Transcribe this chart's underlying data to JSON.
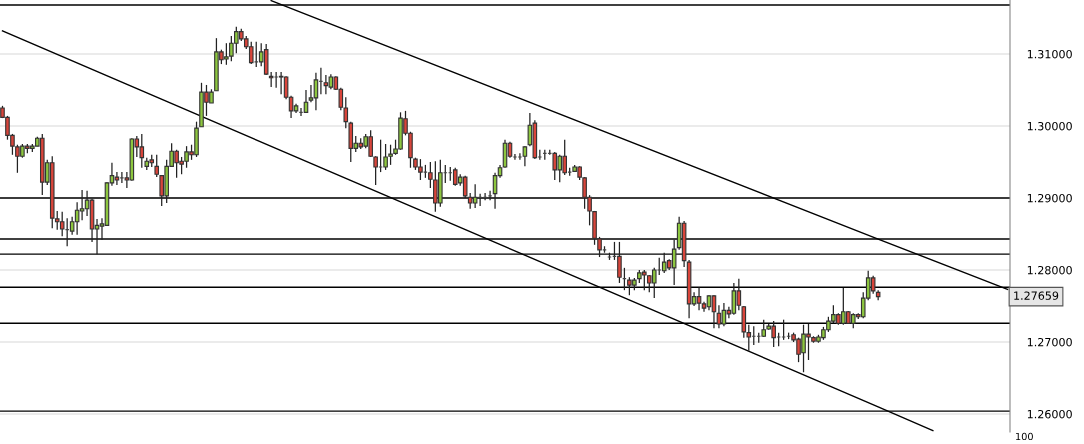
{
  "chart_data": {
    "type": "candlestick",
    "categories": [
      null,
      null,
      null,
      null,
      null,
      null,
      null,
      null,
      null,
      null,
      null,
      null,
      null,
      null,
      null,
      null,
      null,
      null,
      null,
      null,
      null,
      null,
      null,
      null,
      null,
      null,
      null,
      null,
      null,
      null,
      null,
      null,
      null,
      null,
      null,
      null,
      null,
      null,
      null,
      null,
      null,
      null,
      null,
      null,
      null,
      null,
      null,
      null,
      null,
      null,
      null,
      null,
      null,
      null,
      null,
      null,
      null,
      null,
      null,
      null,
      null,
      null,
      null,
      null,
      null,
      null,
      null,
      null,
      null,
      null,
      null,
      null,
      null,
      null,
      null,
      null,
      null,
      null,
      null,
      null,
      null,
      null,
      null,
      null,
      null,
      null,
      null,
      null,
      null,
      null,
      null,
      null,
      null,
      null,
      null,
      null,
      null,
      null,
      null,
      null,
      null,
      null,
      null,
      null,
      null,
      null,
      null,
      null,
      null,
      null,
      null,
      null,
      null,
      null,
      null,
      null,
      null,
      null,
      null,
      null,
      null,
      null,
      null,
      null,
      null,
      null,
      null,
      null,
      null,
      null,
      null,
      null,
      null,
      null,
      null,
      null,
      null,
      null,
      null,
      null,
      null,
      null,
      null,
      null,
      null,
      null,
      null,
      null,
      null,
      null,
      null,
      null,
      null,
      null,
      null,
      null,
      null,
      null,
      null,
      null,
      null,
      null,
      null,
      null,
      null,
      null,
      null,
      null,
      null,
      null,
      null,
      null,
      null,
      null,
      null,
      null,
      null,
      null,
      null,
      null,
      null,
      null,
      null,
      null,
      null,
      null,
      null,
      null,
      null,
      null,
      null,
      null,
      null,
      null,
      null,
      null,
      null,
      null,
      null,
      null,
      null,
      null,
      null
    ],
    "ohlc": [
      [
        1.3025,
        1.3028,
        1.3011,
        1.3012
      ],
      [
        1.3012,
        1.3014,
        1.2981,
        1.2987
      ],
      [
        1.2987,
        1.2989,
        1.296,
        1.2972
      ],
      [
        1.2971,
        1.2974,
        1.2935,
        1.2958
      ],
      [
        1.2958,
        1.2975,
        1.2956,
        1.2972
      ],
      [
        1.2972,
        1.2975,
        1.2962,
        1.2969
      ],
      [
        1.2969,
        1.2975,
        1.2964,
        1.2972
      ],
      [
        1.2972,
        1.2985,
        1.2972,
        1.2983
      ],
      [
        1.2983,
        1.2989,
        1.2904,
        1.2922
      ],
      [
        1.2922,
        1.2953,
        1.2918,
        1.2949
      ],
      [
        1.2949,
        1.2958,
        1.2858,
        1.2872
      ],
      [
        1.2871,
        1.2882,
        1.2856,
        1.2867
      ],
      [
        1.2867,
        1.2881,
        1.2847,
        1.2857
      ],
      [
        1.2856,
        1.2872,
        1.2833,
        1.2856
      ],
      [
        1.2854,
        1.2874,
        1.2849,
        1.2867
      ],
      [
        1.2867,
        1.2894,
        1.2849,
        1.2883
      ],
      [
        1.2882,
        1.2911,
        1.2869,
        1.2885
      ],
      [
        1.2885,
        1.291,
        1.2875,
        1.2897
      ],
      [
        1.2897,
        1.2899,
        1.2839,
        1.2857
      ],
      [
        1.2857,
        1.2871,
        1.2822,
        1.2862
      ],
      [
        1.2861,
        1.2872,
        1.2842,
        1.2864
      ],
      [
        1.2862,
        1.2922,
        1.2862,
        1.2921
      ],
      [
        1.2921,
        1.2949,
        1.2917,
        1.2931
      ],
      [
        1.2929,
        1.2936,
        1.2918,
        1.2925
      ],
      [
        1.2928,
        1.2936,
        1.2921,
        1.2928
      ],
      [
        1.2928,
        1.2936,
        1.2914,
        1.2925
      ],
      [
        1.2925,
        1.2983,
        1.2924,
        1.2982
      ],
      [
        1.2982,
        1.2986,
        1.2957,
        1.2971
      ],
      [
        1.2971,
        1.2989,
        1.2942,
        1.2956
      ],
      [
        1.2944,
        1.2956,
        1.2939,
        1.2951
      ],
      [
        1.2953,
        1.296,
        1.2943,
        1.2949
      ],
      [
        1.2944,
        1.296,
        1.2929,
        1.2933
      ],
      [
        1.2931,
        1.2932,
        1.2889,
        1.2903
      ],
      [
        1.2903,
        1.2953,
        1.2893,
        1.2944
      ],
      [
        1.2944,
        1.2976,
        1.2944,
        1.2965
      ],
      [
        1.2965,
        1.2967,
        1.2928,
        1.2949
      ],
      [
        1.2951,
        1.2957,
        1.2933,
        1.2947
      ],
      [
        1.2951,
        1.2972,
        1.2942,
        1.2964
      ],
      [
        1.2964,
        1.2974,
        1.2953,
        1.296
      ],
      [
        1.296,
        1.3006,
        1.2957,
        1.2997
      ],
      [
        1.2999,
        1.306,
        1.2999,
        1.3047
      ],
      [
        1.3047,
        1.3057,
        1.3014,
        1.3033
      ],
      [
        1.3032,
        1.3051,
        1.3032,
        1.3047
      ],
      [
        1.3049,
        1.3122,
        1.3049,
        1.3103
      ],
      [
        1.3103,
        1.3106,
        1.3086,
        1.3092
      ],
      [
        1.3093,
        1.3115,
        1.3085,
        1.3096
      ],
      [
        1.3097,
        1.3125,
        1.309,
        1.3115
      ],
      [
        1.3115,
        1.3138,
        1.3101,
        1.3131
      ],
      [
        1.3131,
        1.3135,
        1.3118,
        1.3121
      ],
      [
        1.3121,
        1.3125,
        1.3107,
        1.311
      ],
      [
        1.311,
        1.3117,
        1.3086,
        1.3088
      ],
      [
        1.3089,
        1.3117,
        1.3082,
        1.3089
      ],
      [
        1.3089,
        1.3115,
        1.3083,
        1.3103
      ],
      [
        1.3106,
        1.3114,
        1.3071,
        1.3072
      ],
      [
        1.3069,
        1.3075,
        1.3054,
        1.3067
      ],
      [
        1.3068,
        1.3075,
        1.3053,
        1.3068
      ],
      [
        1.3069,
        1.3075,
        1.3044,
        1.3068
      ],
      [
        1.3068,
        1.3069,
        1.3037,
        1.304
      ],
      [
        1.304,
        1.3042,
        1.3011,
        1.3021
      ],
      [
        1.3021,
        1.3031,
        1.3018,
        1.3028
      ],
      [
        1.3019,
        1.3025,
        1.3014,
        1.3019
      ],
      [
        1.3019,
        1.305,
        1.3018,
        1.3033
      ],
      [
        1.3036,
        1.3057,
        1.3033,
        1.3039
      ],
      [
        1.3039,
        1.3074,
        1.3022,
        1.3064
      ],
      [
        1.3062,
        1.3081,
        1.3044,
        1.3062
      ],
      [
        1.306,
        1.3071,
        1.3044,
        1.3056
      ],
      [
        1.3054,
        1.3072,
        1.3051,
        1.3068
      ],
      [
        1.3068,
        1.3069,
        1.305,
        1.3051
      ],
      [
        1.3051,
        1.3053,
        1.3022,
        1.3026
      ],
      [
        1.3025,
        1.304,
        1.2997,
        1.3006
      ],
      [
        1.3004,
        1.3006,
        1.295,
        1.2969
      ],
      [
        1.2969,
        1.2986,
        1.2964,
        1.2976
      ],
      [
        1.2976,
        1.2983,
        1.2968,
        1.2971
      ],
      [
        1.2972,
        1.2989,
        1.2969,
        1.2985
      ],
      [
        1.2985,
        1.2994,
        1.2957,
        1.2958
      ],
      [
        1.2957,
        1.2958,
        1.2918,
        1.2943
      ],
      [
        1.2943,
        1.2981,
        1.2936,
        1.2943
      ],
      [
        1.2943,
        1.2975,
        1.2939,
        1.2957
      ],
      [
        1.2958,
        1.2974,
        1.2946,
        1.2961
      ],
      [
        1.2962,
        1.2981,
        1.296,
        1.2968
      ],
      [
        1.2968,
        1.3019,
        1.2967,
        1.3011
      ],
      [
        1.301,
        1.3021,
        1.2987,
        1.299
      ],
      [
        1.299,
        1.2992,
        1.2942,
        1.2956
      ],
      [
        1.2954,
        1.2956,
        1.2939,
        1.2943
      ],
      [
        1.2943,
        1.2954,
        1.2925,
        1.2936
      ],
      [
        1.2936,
        1.2946,
        1.2928,
        1.2936
      ],
      [
        1.2935,
        1.295,
        1.2914,
        1.2926
      ],
      [
        1.2925,
        1.2951,
        1.2881,
        1.2893
      ],
      [
        1.2893,
        1.2953,
        1.2888,
        1.2935
      ],
      [
        1.2935,
        1.2946,
        1.2921,
        1.2935
      ],
      [
        1.2935,
        1.2943,
        1.2924,
        1.2935
      ],
      [
        1.2939,
        1.2942,
        1.2917,
        1.2919
      ],
      [
        1.2921,
        1.2933,
        1.2917,
        1.2929
      ],
      [
        1.2929,
        1.2931,
        1.29,
        1.2903
      ],
      [
        1.2901,
        1.2907,
        1.2885,
        1.2893
      ],
      [
        1.2893,
        1.2919,
        1.2886,
        1.2901
      ],
      [
        1.2901,
        1.2906,
        1.2889,
        1.2901
      ],
      [
        1.2901,
        1.2907,
        1.2897,
        1.2901
      ],
      [
        1.2903,
        1.291,
        1.2897,
        1.2903
      ],
      [
        1.2906,
        1.2935,
        1.2885,
        1.2931
      ],
      [
        1.2931,
        1.2946,
        1.2928,
        1.2942
      ],
      [
        1.2943,
        1.2981,
        1.2942,
        1.2976
      ],
      [
        1.2976,
        1.2978,
        1.2956,
        1.2958
      ],
      [
        1.2957,
        1.2961,
        1.2953,
        1.2957
      ],
      [
        1.2957,
        1.2962,
        1.2953,
        1.2957
      ],
      [
        1.2958,
        1.2972,
        1.2944,
        1.2971
      ],
      [
        1.2974,
        1.3018,
        1.2972,
        1.3001
      ],
      [
        1.3004,
        1.3008,
        1.2954,
        1.2956
      ],
      [
        1.2957,
        1.2967,
        1.2953,
        1.2957
      ],
      [
        1.2962,
        1.2967,
        1.2953,
        1.2962
      ],
      [
        1.2962,
        1.2967,
        1.296,
        1.2962
      ],
      [
        1.2962,
        1.2964,
        1.2925,
        1.2939
      ],
      [
        1.2939,
        1.296,
        1.2922,
        1.2958
      ],
      [
        1.2958,
        1.2981,
        1.2932,
        1.2935
      ],
      [
        1.2936,
        1.2942,
        1.2931,
        1.2936
      ],
      [
        1.2937,
        1.2946,
        1.2936,
        1.2943
      ],
      [
        1.2943,
        1.2944,
        1.2925,
        1.2929
      ],
      [
        1.2928,
        1.2929,
        1.2885,
        1.2901
      ],
      [
        1.2901,
        1.2904,
        1.2862,
        1.2882
      ],
      [
        1.2881,
        1.2882,
        1.2835,
        1.2844
      ],
      [
        1.2843,
        1.2846,
        1.2818,
        1.2828
      ],
      [
        1.2828,
        1.2833,
        1.2824,
        1.2828
      ],
      [
        1.2818,
        1.2824,
        1.2814,
        1.2818
      ],
      [
        1.2819,
        1.2839,
        1.2814,
        1.2819
      ],
      [
        1.2819,
        1.2839,
        1.2782,
        1.279
      ],
      [
        1.2788,
        1.2803,
        1.2772,
        1.2788
      ],
      [
        1.2786,
        1.279,
        1.2765,
        1.2779
      ],
      [
        1.2779,
        1.2789,
        1.2772,
        1.2786
      ],
      [
        1.2788,
        1.28,
        1.2782,
        1.2796
      ],
      [
        1.2797,
        1.28,
        1.2772,
        1.2793
      ],
      [
        1.2792,
        1.2793,
        1.2769,
        1.2782
      ],
      [
        1.2782,
        1.2803,
        1.2761,
        1.28
      ],
      [
        1.28,
        1.2817,
        1.2793,
        1.28
      ],
      [
        1.2799,
        1.2824,
        1.2796,
        1.2811
      ],
      [
        1.2813,
        1.2815,
        1.28,
        1.2803
      ],
      [
        1.2803,
        1.2842,
        1.2779,
        1.2829
      ],
      [
        1.2831,
        1.2874,
        1.2828,
        1.2865
      ],
      [
        1.2865,
        1.2868,
        1.2804,
        1.2813
      ],
      [
        1.2811,
        1.2814,
        1.2733,
        1.2753
      ],
      [
        1.2753,
        1.2769,
        1.275,
        1.2763
      ],
      [
        1.2763,
        1.2776,
        1.2744,
        1.2754
      ],
      [
        1.2753,
        1.2756,
        1.2742,
        1.2747
      ],
      [
        1.2749,
        1.2765,
        1.2744,
        1.2764
      ],
      [
        1.2764,
        1.2765,
        1.2719,
        1.2742
      ],
      [
        1.274,
        1.2751,
        1.2719,
        1.2725
      ],
      [
        1.2725,
        1.2754,
        1.2722,
        1.2744
      ],
      [
        1.2744,
        1.2749,
        1.2733,
        1.2739
      ],
      [
        1.274,
        1.2782,
        1.2738,
        1.2771
      ],
      [
        1.2771,
        1.2788,
        1.2744,
        1.2751
      ],
      [
        1.2749,
        1.275,
        1.2706,
        1.2714
      ],
      [
        1.2713,
        1.2724,
        1.2688,
        1.2707
      ],
      [
        1.2708,
        1.2722,
        1.2696,
        1.2708
      ],
      [
        1.2708,
        1.2713,
        1.2699,
        1.2708
      ],
      [
        1.2708,
        1.2731,
        1.2707,
        1.2717
      ],
      [
        1.2718,
        1.2725,
        1.2717,
        1.2722
      ],
      [
        1.2722,
        1.2729,
        1.2693,
        1.2706
      ],
      [
        1.2707,
        1.2713,
        1.2694,
        1.2707
      ],
      [
        1.2707,
        1.2731,
        1.2703,
        1.2707
      ],
      [
        1.2708,
        1.2713,
        1.2704,
        1.2708
      ],
      [
        1.271,
        1.2713,
        1.27,
        1.2703
      ],
      [
        1.2704,
        1.2706,
        1.2672,
        1.2683
      ],
      [
        1.2685,
        1.2724,
        1.2658,
        1.2711
      ],
      [
        1.2711,
        1.2725,
        1.2675,
        1.2707
      ],
      [
        1.2706,
        1.2708,
        1.2699,
        1.2701
      ],
      [
        1.2701,
        1.271,
        1.2699,
        1.2707
      ],
      [
        1.2706,
        1.2721,
        1.2703,
        1.2717
      ],
      [
        1.2717,
        1.2735,
        1.2714,
        1.2729
      ],
      [
        1.2729,
        1.2751,
        1.2726,
        1.2738
      ],
      [
        1.2738,
        1.274,
        1.2724,
        1.2726
      ],
      [
        1.2726,
        1.2775,
        1.2724,
        1.2742
      ],
      [
        1.2742,
        1.2743,
        1.2725,
        1.2726
      ],
      [
        1.2726,
        1.274,
        1.2719,
        1.2738
      ],
      [
        1.2738,
        1.274,
        1.2732,
        1.2735
      ],
      [
        1.2735,
        1.2769,
        1.2733,
        1.2761
      ],
      [
        1.2761,
        1.2799,
        1.2758,
        1.2789
      ],
      [
        1.2789,
        1.2792,
        1.2767,
        1.2771
      ],
      [
        1.2769,
        1.2772,
        1.2758,
        1.2763
      ],
      null,
      null,
      null,
      null,
      null,
      null,
      null,
      null,
      null,
      null,
      null,
      null,
      null,
      null,
      null,
      null,
      null,
      null,
      null,
      null,
      null,
      null,
      null,
      null,
      null,
      null
    ],
    "colors": [
      "#d9453b",
      "#d9453b",
      "#d9453b",
      "#d9453b",
      "#8dc63f",
      "#d9453b",
      "#8dc63f",
      "#8dc63f",
      "#d9453b",
      "#8dc63f",
      "#d9453b",
      "#d9453b",
      "#d9453b",
      "#444444",
      "#8dc63f",
      "#8dc63f",
      "#8dc63f",
      "#8dc63f",
      "#d9453b",
      "#8dc63f",
      "#8dc63f",
      "#8dc63f",
      "#8dc63f",
      "#d9453b",
      "#444444",
      "#d9453b",
      "#8dc63f",
      "#d9453b",
      "#d9453b",
      "#8dc63f",
      "#d9453b",
      "#d9453b",
      "#d9453b",
      "#8dc63f",
      "#8dc63f",
      "#d9453b",
      "#d9453b",
      "#8dc63f",
      "#d9453b",
      "#8dc63f",
      "#8dc63f",
      "#d9453b",
      "#8dc63f",
      "#8dc63f",
      "#d9453b",
      "#8dc63f",
      "#8dc63f",
      "#8dc63f",
      "#d9453b",
      "#d9453b",
      "#d9453b",
      "#444444",
      "#8dc63f",
      "#d9453b",
      "#d9453b",
      "#444444",
      "#d9453b",
      "#d9453b",
      "#d9453b",
      "#8dc63f",
      "#444444",
      "#8dc63f",
      "#8dc63f",
      "#8dc63f",
      "#444444",
      "#d9453b",
      "#8dc63f",
      "#d9453b",
      "#d9453b",
      "#d9453b",
      "#d9453b",
      "#8dc63f",
      "#d9453b",
      "#8dc63f",
      "#d9453b",
      "#d9453b",
      "#444444",
      "#8dc63f",
      "#8dc63f",
      "#8dc63f",
      "#8dc63f",
      "#d9453b",
      "#d9453b",
      "#d9453b",
      "#d9453b",
      "#444444",
      "#d9453b",
      "#d9453b",
      "#8dc63f",
      "#444444",
      "#444444",
      "#d9453b",
      "#8dc63f",
      "#d9453b",
      "#d9453b",
      "#8dc63f",
      "#444444",
      "#444444",
      "#444444",
      "#8dc63f",
      "#8dc63f",
      "#8dc63f",
      "#d9453b",
      "#444444",
      "#444444",
      "#8dc63f",
      "#8dc63f",
      "#d9453b",
      "#444444",
      "#444444",
      "#444444",
      "#d9453b",
      "#8dc63f",
      "#d9453b",
      "#444444",
      "#8dc63f",
      "#d9453b",
      "#d9453b",
      "#d9453b",
      "#d9453b",
      "#d9453b",
      "#444444",
      "#444444",
      "#444444",
      "#d9453b",
      "#444444",
      "#d9453b",
      "#8dc63f",
      "#8dc63f",
      "#d9453b",
      "#d9453b",
      "#8dc63f",
      "#444444",
      "#8dc63f",
      "#d9453b",
      "#8dc63f",
      "#8dc63f",
      "#d9453b",
      "#d9453b",
      "#8dc63f",
      "#d9453b",
      "#d9453b",
      "#8dc63f",
      "#d9453b",
      "#d9453b",
      "#8dc63f",
      "#d9453b",
      "#8dc63f",
      "#d9453b",
      "#d9453b",
      "#d9453b",
      "#444444",
      "#444444",
      "#8dc63f",
      "#8dc63f",
      "#d9453b",
      "#444444",
      "#444444",
      "#444444",
      "#d9453b",
      "#d9453b",
      "#8dc63f",
      "#d9453b",
      "#d9453b",
      "#8dc63f",
      "#8dc63f",
      "#8dc63f",
      "#8dc63f",
      "#d9453b",
      "#8dc63f",
      "#d9453b",
      "#8dc63f",
      "#d9453b",
      "#8dc63f",
      "#8dc63f",
      "#d9453b",
      "#d9453b",
      null,
      null,
      null,
      null,
      null,
      null,
      null,
      null,
      null,
      null,
      null,
      null,
      null,
      null,
      null,
      null,
      null,
      null,
      null,
      null,
      null,
      null,
      null,
      null,
      null,
      null
    ],
    "series": [
      {
        "type": "line",
        "color": "#000000",
        "values": [
          1.3132,
          null,
          null,
          null,
          null,
          null,
          null,
          null,
          null,
          null,
          null,
          null,
          null,
          null,
          null,
          null,
          null,
          null,
          null,
          null,
          null,
          null,
          null,
          null,
          null,
          null,
          null,
          null,
          null,
          null,
          null,
          null,
          null,
          null,
          null,
          null,
          null,
          null,
          null,
          null,
          null,
          null,
          null,
          null,
          null,
          null,
          null,
          null,
          null,
          null,
          null,
          null,
          null,
          null,
          null,
          null,
          null,
          null,
          null,
          null,
          null,
          null,
          null,
          null,
          null,
          null,
          null,
          null,
          null,
          null,
          null,
          null,
          null,
          null,
          null,
          null,
          null,
          null,
          null,
          null,
          null,
          null,
          null,
          null,
          null,
          null,
          null,
          null,
          null,
          null,
          null,
          null,
          null,
          null,
          null,
          null,
          null,
          null,
          null,
          null,
          null,
          null,
          null,
          null,
          null,
          null,
          null,
          null,
          null,
          null,
          null,
          null,
          null,
          null,
          null,
          null,
          null,
          null,
          null,
          null,
          null,
          null,
          null,
          null,
          null,
          null,
          null,
          null,
          null,
          null,
          null,
          null,
          null,
          null,
          null,
          null,
          null,
          null,
          null,
          null,
          null,
          null,
          null,
          null,
          null,
          null,
          null,
          null,
          null,
          null,
          null,
          null,
          null,
          null,
          null,
          null,
          null,
          null,
          null,
          null,
          null,
          null,
          null,
          null,
          null,
          null,
          null,
          null,
          null,
          null,
          null,
          null,
          null,
          null,
          null,
          null,
          1.261,
          null,
          null,
          null,
          null,
          null,
          null,
          null,
          null,
          null,
          null,
          1.2577,
          null,
          null,
          null,
          null,
          null,
          null,
          null,
          null,
          null,
          null,
          null,
          null,
          null,
          null,
          null
        ]
      },
      {
        "type": "line",
        "color": "#000000",
        "values": [
          null,
          null,
          null,
          null,
          null,
          null,
          null,
          null,
          null,
          null,
          null,
          null,
          null,
          null,
          null,
          null,
          null,
          null,
          null,
          null,
          null,
          null,
          null,
          null,
          null,
          null,
          null,
          null,
          null,
          null,
          null,
          null,
          null,
          null,
          null,
          null,
          null,
          null,
          null,
          null,
          null,
          null,
          null,
          null,
          null,
          null,
          null,
          null,
          null,
          null,
          null,
          null,
          null,
          null,
          1.3174,
          null,
          null,
          null,
          null,
          null,
          null,
          null,
          null,
          null,
          null,
          null,
          null,
          null,
          null,
          null,
          null,
          null,
          null,
          null,
          null,
          null,
          null,
          null,
          null,
          null,
          null,
          null,
          null,
          null,
          null,
          null,
          null,
          null,
          null,
          null,
          null,
          null,
          null,
          null,
          null,
          null,
          null,
          null,
          null,
          null,
          null,
          null,
          null,
          null,
          null,
          null,
          null,
          null,
          null,
          null,
          null,
          null,
          null,
          null,
          null,
          null,
          null,
          null,
          null,
          null,
          null,
          null,
          null,
          null,
          null,
          null,
          null,
          null,
          null,
          null,
          null,
          null,
          null,
          null,
          null,
          null,
          null,
          null,
          null,
          null,
          null,
          null,
          null,
          null,
          null,
          null,
          null,
          null,
          null,
          null,
          null,
          null,
          null,
          null,
          null,
          null,
          null,
          null,
          null,
          null,
          null,
          null,
          null,
          null,
          null,
          null,
          null,
          null,
          null,
          null,
          null,
          null,
          null,
          null,
          null,
          null,
          1.2843,
          null,
          null,
          null,
          null,
          null,
          null,
          null,
          null,
          null,
          null,
          null,
          null,
          null,
          null,
          null,
          null,
          null,
          null,
          null,
          null,
          null,
          null,
          null,
          null,
          null,
          1.2773
        ]
      }
    ],
    "ref_lines": [
      {
        "axis": "y",
        "value": 1.3168,
        "color": "#000000"
      },
      {
        "axis": "y",
        "value": 1.29,
        "color": "#000000"
      },
      {
        "axis": "y",
        "value": 1.2843,
        "color": "#000000"
      },
      {
        "axis": "y",
        "value": 1.2822,
        "color": "#000000"
      },
      {
        "axis": "y",
        "value": 1.2776,
        "color": "#000000"
      },
      {
        "axis": "y",
        "value": 1.2726,
        "color": "#000000"
      },
      {
        "axis": "y",
        "value": 1.2604,
        "color": "#000000"
      }
    ],
    "annotations": [
      "1.27659",
      "100"
    ],
    "ylim": [
      1.2575,
      1.3175
    ],
    "yticks": [
      {
        "value": 1.26,
        "label": "1.26000"
      },
      {
        "value": 1.27,
        "label": "1.27000"
      },
      {
        "value": 1.28,
        "label": "1.28000"
      },
      {
        "value": 1.29,
        "label": "1.29000"
      },
      {
        "value": 1.3,
        "label": "1.30000"
      },
      {
        "value": 1.31,
        "label": "1.31000"
      }
    ],
    "tick_labels": "y",
    "grid": "y",
    "legend": false
  }
}
